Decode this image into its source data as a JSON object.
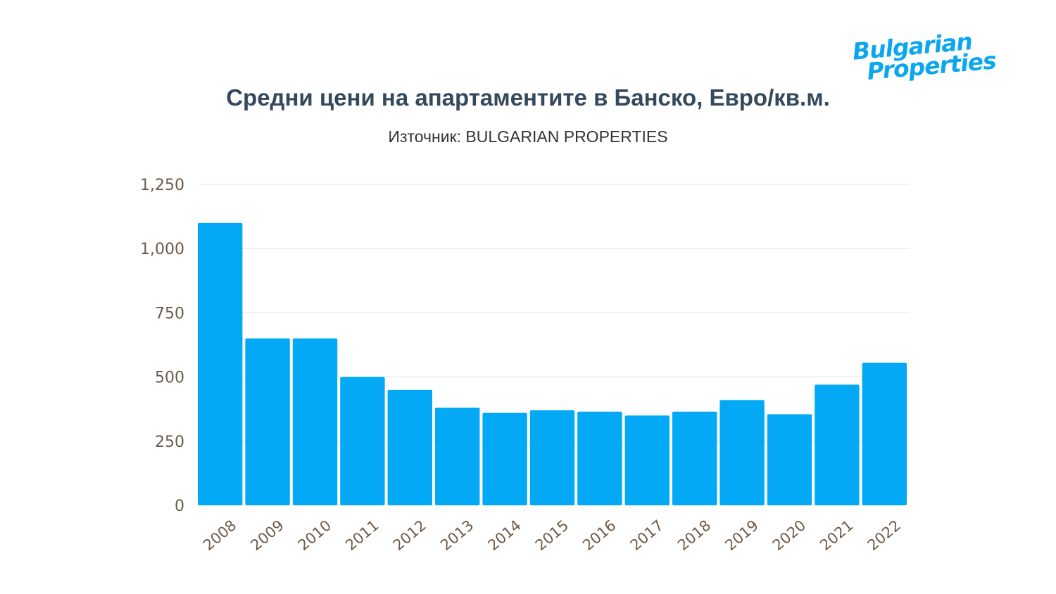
{
  "logo": {
    "line1": "Bulgarian",
    "line2": "Properties"
  },
  "chart_data": {
    "type": "bar",
    "title": "Средни цени на апартаментите в Банско, Евро/кв.м.",
    "subtitle": "Източник: BULGARIAN PROPERTIES",
    "xlabel": "",
    "ylabel": "",
    "categories": [
      "2008",
      "2009",
      "2010",
      "2011",
      "2012",
      "2013",
      "2014",
      "2015",
      "2016",
      "2017",
      "2018",
      "2019",
      "2020",
      "2021",
      "2022"
    ],
    "values": [
      1100,
      650,
      650,
      500,
      450,
      380,
      360,
      370,
      365,
      350,
      365,
      410,
      355,
      470,
      555
    ],
    "ylim": [
      0,
      1250
    ],
    "yticks": [
      "0",
      "250",
      "500",
      "750",
      "1,000",
      "1,250"
    ],
    "ytick_values": [
      0,
      250,
      500,
      750,
      1000,
      1250
    ],
    "grid": true,
    "legend": "none",
    "bar_color": "#03a9f4"
  }
}
